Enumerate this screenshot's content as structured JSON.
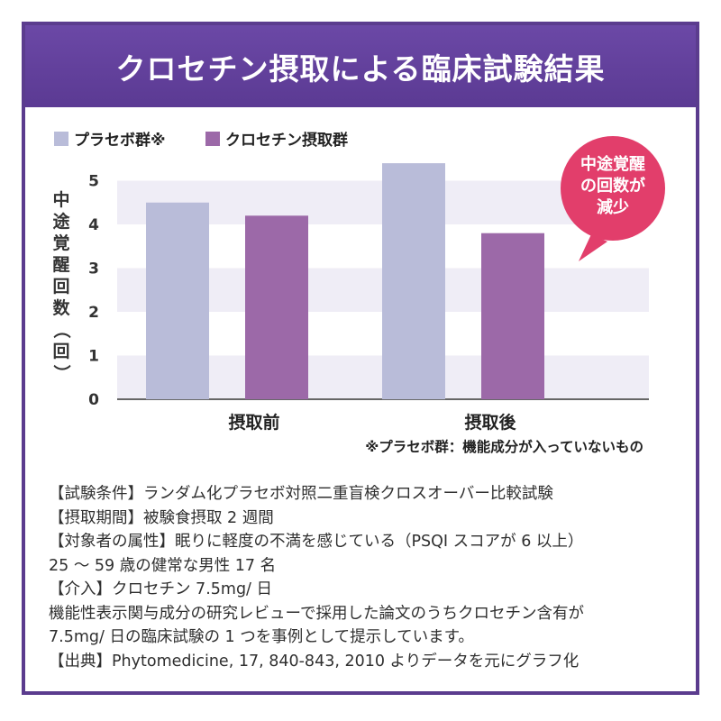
{
  "title": "クロセチン摂取による臨床試験結果",
  "colors": {
    "header": "#5e3d97",
    "placebo": "#b9bcd9",
    "crocetin": "#9c69a8",
    "callout": "#e23e6b",
    "band": "#efedf6"
  },
  "chart_data": {
    "type": "bar",
    "categories": [
      "摂取前",
      "摂取後"
    ],
    "series": [
      {
        "name": "プラセボ群※",
        "values": [
          4.5,
          5.4
        ]
      },
      {
        "name": "クロセチン摂取群",
        "values": [
          4.2,
          3.8
        ]
      }
    ],
    "ylabel": "中途覚醒回数（回）",
    "yticks": [
      0,
      1,
      2,
      3,
      4,
      5
    ],
    "ylim": [
      0,
      5.6
    ],
    "legend": "top-left",
    "callout": [
      "中途覚醒",
      "の回数が",
      "減少"
    ],
    "footnote": "※プラセボ群：機能成分が入っていないもの"
  },
  "notes": [
    "【試験条件】ランダム化プラセボ対照二重盲検クロスオーバー比較試験",
    "【摂取期間】被験食摂取 2 週間",
    "【対象者の属性】眠りに軽度の不満を感じている（PSQI スコアが 6 以上）",
    "25 ～ 59 歳の健常な男性 17 名",
    "【介入】クロセチン 7.5mg/ 日",
    "機能性表示関与成分の研究レビューで採用した論文のうちクロセチン含有が",
    "7.5mg/ 日の臨床試験の 1 つを事例として提示しています。",
    "【出典】Phytomedicine, 17, 840-843, 2010 よりデータを元にグラフ化"
  ]
}
